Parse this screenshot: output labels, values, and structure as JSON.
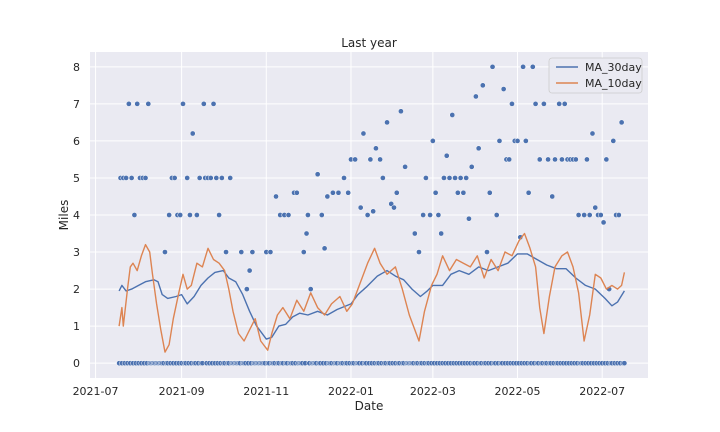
{
  "chart_data": {
    "type": "scatter+line",
    "title": "Last year",
    "xlabel": "Date",
    "ylabel": "Miles",
    "xlim": [
      "2021-06-27",
      "2022-08-03"
    ],
    "ylim": [
      -0.4,
      8.4
    ],
    "x_ticks": [
      {
        "date": "2021-07-01",
        "label": "2021-07"
      },
      {
        "date": "2021-09-01",
        "label": "2021-09"
      },
      {
        "date": "2021-11-01",
        "label": "2021-11"
      },
      {
        "date": "2022-01-01",
        "label": "2022-01"
      },
      {
        "date": "2022-03-01",
        "label": "2022-03"
      },
      {
        "date": "2022-05-01",
        "label": "2022-05"
      },
      {
        "date": "2022-07-01",
        "label": "2022-07"
      }
    ],
    "y_ticks": [
      0,
      1,
      2,
      3,
      4,
      5,
      6,
      7,
      8
    ],
    "grid": true,
    "legend_position": "top-right",
    "date_range": [
      "2021-07-18",
      "2022-07-17"
    ],
    "zero_days": "all days without a run (miles = 0)",
    "runs": [
      [
        "2021-07-19",
        5
      ],
      [
        "2021-07-21",
        5
      ],
      [
        "2021-07-23",
        5
      ],
      [
        "2021-07-25",
        7
      ],
      [
        "2021-07-27",
        5
      ],
      [
        "2021-07-29",
        4
      ],
      [
        "2021-07-31",
        7
      ],
      [
        "2021-08-02",
        5
      ],
      [
        "2021-08-04",
        5
      ],
      [
        "2021-08-06",
        5
      ],
      [
        "2021-08-08",
        7
      ],
      [
        "2021-08-20",
        3
      ],
      [
        "2021-08-23",
        4
      ],
      [
        "2021-08-25",
        5
      ],
      [
        "2021-08-27",
        5
      ],
      [
        "2021-08-29",
        4
      ],
      [
        "2021-08-31",
        4
      ],
      [
        "2021-09-02",
        7
      ],
      [
        "2021-09-05",
        5
      ],
      [
        "2021-09-07",
        4
      ],
      [
        "2021-09-09",
        6.2
      ],
      [
        "2021-09-12",
        4
      ],
      [
        "2021-09-14",
        5
      ],
      [
        "2021-09-17",
        7
      ],
      [
        "2021-09-18",
        5
      ],
      [
        "2021-09-20",
        5
      ],
      [
        "2021-09-22",
        5
      ],
      [
        "2021-09-24",
        7
      ],
      [
        "2021-09-26",
        5
      ],
      [
        "2021-09-28",
        4
      ],
      [
        "2021-09-30",
        5
      ],
      [
        "2021-10-03",
        3
      ],
      [
        "2021-10-06",
        5
      ],
      [
        "2021-10-14",
        3
      ],
      [
        "2021-10-18",
        2
      ],
      [
        "2021-10-20",
        2.5
      ],
      [
        "2021-10-22",
        3
      ],
      [
        "2021-11-01",
        3
      ],
      [
        "2021-11-04",
        3
      ],
      [
        "2021-11-08",
        4.5
      ],
      [
        "2021-11-11",
        4
      ],
      [
        "2021-11-14",
        4
      ],
      [
        "2021-11-17",
        4
      ],
      [
        "2021-11-21",
        4.6
      ],
      [
        "2021-11-23",
        4.6
      ],
      [
        "2021-11-28",
        3
      ],
      [
        "2021-11-30",
        3.5
      ],
      [
        "2021-12-01",
        4
      ],
      [
        "2021-12-03",
        2
      ],
      [
        "2021-12-08",
        5.1
      ],
      [
        "2021-12-11",
        4
      ],
      [
        "2021-12-13",
        3.1
      ],
      [
        "2021-12-15",
        4.5
      ],
      [
        "2021-12-19",
        4.6
      ],
      [
        "2021-12-23",
        4.6
      ],
      [
        "2021-12-27",
        5
      ],
      [
        "2021-12-30",
        4.6
      ],
      [
        "2022-01-01",
        5.5
      ],
      [
        "2022-01-04",
        5.5
      ],
      [
        "2022-01-08",
        4.2
      ],
      [
        "2022-01-10",
        6.2
      ],
      [
        "2022-01-13",
        4
      ],
      [
        "2022-01-15",
        5.5
      ],
      [
        "2022-01-17",
        4.1
      ],
      [
        "2022-01-19",
        5.8
      ],
      [
        "2022-01-22",
        5.5
      ],
      [
        "2022-01-24",
        5
      ],
      [
        "2022-01-27",
        6.5
      ],
      [
        "2022-01-30",
        4.3
      ],
      [
        "2022-02-01",
        4.2
      ],
      [
        "2022-02-03",
        4.6
      ],
      [
        "2022-02-06",
        6.8
      ],
      [
        "2022-02-09",
        5.3
      ],
      [
        "2022-02-16",
        3.5
      ],
      [
        "2022-02-19",
        3
      ],
      [
        "2022-02-22",
        4
      ],
      [
        "2022-02-24",
        5
      ],
      [
        "2022-02-27",
        4
      ],
      [
        "2022-03-01",
        6
      ],
      [
        "2022-03-03",
        4.6
      ],
      [
        "2022-03-05",
        4
      ],
      [
        "2022-03-07",
        3.5
      ],
      [
        "2022-03-09",
        5
      ],
      [
        "2022-03-11",
        5.6
      ],
      [
        "2022-03-13",
        5
      ],
      [
        "2022-03-15",
        6.7
      ],
      [
        "2022-03-17",
        5
      ],
      [
        "2022-03-19",
        4.6
      ],
      [
        "2022-03-21",
        5
      ],
      [
        "2022-03-23",
        4.6
      ],
      [
        "2022-03-25",
        5
      ],
      [
        "2022-03-27",
        3.9
      ],
      [
        "2022-03-29",
        5.3
      ],
      [
        "2022-04-01",
        7.2
      ],
      [
        "2022-04-03",
        5.8
      ],
      [
        "2022-04-06",
        7.5
      ],
      [
        "2022-04-09",
        3
      ],
      [
        "2022-04-11",
        4.6
      ],
      [
        "2022-04-13",
        8
      ],
      [
        "2022-04-16",
        4
      ],
      [
        "2022-04-18",
        6
      ],
      [
        "2022-04-21",
        7.4
      ],
      [
        "2022-04-23",
        5.5
      ],
      [
        "2022-04-25",
        5.5
      ],
      [
        "2022-04-27",
        7
      ],
      [
        "2022-04-29",
        6
      ],
      [
        "2022-05-01",
        6
      ],
      [
        "2022-05-03",
        3.4
      ],
      [
        "2022-05-05",
        8
      ],
      [
        "2022-05-07",
        6
      ],
      [
        "2022-05-09",
        4.6
      ],
      [
        "2022-05-12",
        8
      ],
      [
        "2022-05-14",
        7
      ],
      [
        "2022-05-17",
        5.5
      ],
      [
        "2022-05-20",
        7
      ],
      [
        "2022-05-23",
        5.5
      ],
      [
        "2022-05-26",
        4.5
      ],
      [
        "2022-05-28",
        5.5
      ],
      [
        "2022-05-31",
        7
      ],
      [
        "2022-06-02",
        5.5
      ],
      [
        "2022-06-04",
        7
      ],
      [
        "2022-06-06",
        5.5
      ],
      [
        "2022-06-08",
        5.5
      ],
      [
        "2022-06-10",
        5.5
      ],
      [
        "2022-06-12",
        5.5
      ],
      [
        "2022-06-14",
        4
      ],
      [
        "2022-06-18",
        4
      ],
      [
        "2022-06-20",
        5.5
      ],
      [
        "2022-06-22",
        4
      ],
      [
        "2022-06-24",
        6.2
      ],
      [
        "2022-06-26",
        4.2
      ],
      [
        "2022-06-28",
        4
      ],
      [
        "2022-06-30",
        4
      ],
      [
        "2022-07-02",
        3.8
      ],
      [
        "2022-07-04",
        5.5
      ],
      [
        "2022-07-06",
        2
      ],
      [
        "2022-07-09",
        6
      ],
      [
        "2022-07-11",
        4
      ],
      [
        "2022-07-13",
        4
      ],
      [
        "2022-07-15",
        6.5
      ]
    ],
    "series": [
      {
        "name": "MA_30day",
        "color": "#4c72b0",
        "points": [
          [
            "2021-07-18",
            1.95
          ],
          [
            "2021-07-20",
            2.1
          ],
          [
            "2021-07-23",
            1.95
          ],
          [
            "2021-07-27",
            2.0
          ],
          [
            "2021-08-01",
            2.1
          ],
          [
            "2021-08-06",
            2.2
          ],
          [
            "2021-08-12",
            2.25
          ],
          [
            "2021-08-15",
            2.2
          ],
          [
            "2021-08-18",
            1.85
          ],
          [
            "2021-08-22",
            1.75
          ],
          [
            "2021-08-28",
            1.8
          ],
          [
            "2021-09-01",
            1.85
          ],
          [
            "2021-09-05",
            1.6
          ],
          [
            "2021-09-10",
            1.8
          ],
          [
            "2021-09-15",
            2.1
          ],
          [
            "2021-09-20",
            2.3
          ],
          [
            "2021-09-25",
            2.45
          ],
          [
            "2021-10-01",
            2.5
          ],
          [
            "2021-10-05",
            2.3
          ],
          [
            "2021-10-10",
            2.2
          ],
          [
            "2021-10-15",
            1.85
          ],
          [
            "2021-10-20",
            1.4
          ],
          [
            "2021-10-25",
            1.0
          ],
          [
            "2021-11-01",
            0.65
          ],
          [
            "2021-11-05",
            0.7
          ],
          [
            "2021-11-10",
            1.0
          ],
          [
            "2021-11-15",
            1.05
          ],
          [
            "2021-11-20",
            1.25
          ],
          [
            "2021-11-25",
            1.35
          ],
          [
            "2021-12-01",
            1.3
          ],
          [
            "2021-12-08",
            1.4
          ],
          [
            "2021-12-15",
            1.3
          ],
          [
            "2021-12-22",
            1.45
          ],
          [
            "2022-01-01",
            1.6
          ],
          [
            "2022-01-06",
            1.85
          ],
          [
            "2022-01-12",
            2.05
          ],
          [
            "2022-01-20",
            2.35
          ],
          [
            "2022-01-27",
            2.5
          ],
          [
            "2022-02-02",
            2.35
          ],
          [
            "2022-02-08",
            2.25
          ],
          [
            "2022-02-14",
            2.0
          ],
          [
            "2022-02-20",
            1.8
          ],
          [
            "2022-02-25",
            1.95
          ],
          [
            "2022-03-01",
            2.1
          ],
          [
            "2022-03-08",
            2.1
          ],
          [
            "2022-03-14",
            2.4
          ],
          [
            "2022-03-20",
            2.5
          ],
          [
            "2022-03-27",
            2.4
          ],
          [
            "2022-04-03",
            2.6
          ],
          [
            "2022-04-10",
            2.5
          ],
          [
            "2022-04-17",
            2.6
          ],
          [
            "2022-04-24",
            2.7
          ],
          [
            "2022-05-01",
            2.95
          ],
          [
            "2022-05-08",
            2.95
          ],
          [
            "2022-05-15",
            2.8
          ],
          [
            "2022-05-22",
            2.65
          ],
          [
            "2022-05-29",
            2.55
          ],
          [
            "2022-06-05",
            2.55
          ],
          [
            "2022-06-12",
            2.3
          ],
          [
            "2022-06-19",
            2.1
          ],
          [
            "2022-06-26",
            2.0
          ],
          [
            "2022-07-03",
            1.75
          ],
          [
            "2022-07-08",
            1.55
          ],
          [
            "2022-07-12",
            1.65
          ],
          [
            "2022-07-17",
            1.95
          ]
        ]
      },
      {
        "name": "MA_10day",
        "color": "#dd8452",
        "points": [
          [
            "2021-07-18",
            1.0
          ],
          [
            "2021-07-20",
            1.5
          ],
          [
            "2021-07-21",
            1.0
          ],
          [
            "2021-07-24",
            2.0
          ],
          [
            "2021-07-26",
            2.6
          ],
          [
            "2021-07-28",
            2.7
          ],
          [
            "2021-07-31",
            2.5
          ],
          [
            "2021-08-03",
            2.9
          ],
          [
            "2021-08-06",
            3.2
          ],
          [
            "2021-08-09",
            3.0
          ],
          [
            "2021-08-11",
            2.4
          ],
          [
            "2021-08-14",
            1.6
          ],
          [
            "2021-08-17",
            0.9
          ],
          [
            "2021-08-20",
            0.3
          ],
          [
            "2021-08-23",
            0.5
          ],
          [
            "2021-08-26",
            1.2
          ],
          [
            "2021-08-30",
            1.9
          ],
          [
            "2021-09-02",
            2.4
          ],
          [
            "2021-09-05",
            2.0
          ],
          [
            "2021-09-08",
            2.1
          ],
          [
            "2021-09-12",
            2.7
          ],
          [
            "2021-09-16",
            2.6
          ],
          [
            "2021-09-20",
            3.1
          ],
          [
            "2021-09-24",
            2.8
          ],
          [
            "2021-09-28",
            2.7
          ],
          [
            "2021-10-02",
            2.5
          ],
          [
            "2021-10-05",
            2.0
          ],
          [
            "2021-10-08",
            1.4
          ],
          [
            "2021-10-12",
            0.8
          ],
          [
            "2021-10-16",
            0.6
          ],
          [
            "2021-10-20",
            0.9
          ],
          [
            "2021-10-24",
            1.2
          ],
          [
            "2021-10-28",
            0.6
          ],
          [
            "2021-11-02",
            0.35
          ],
          [
            "2021-11-05",
            0.8
          ],
          [
            "2021-11-09",
            1.3
          ],
          [
            "2021-11-13",
            1.5
          ],
          [
            "2021-11-18",
            1.2
          ],
          [
            "2021-11-23",
            1.7
          ],
          [
            "2021-11-28",
            1.4
          ],
          [
            "2021-12-03",
            1.9
          ],
          [
            "2021-12-08",
            1.5
          ],
          [
            "2021-12-13",
            1.3
          ],
          [
            "2021-12-18",
            1.6
          ],
          [
            "2021-12-24",
            1.8
          ],
          [
            "2021-12-29",
            1.4
          ],
          [
            "2022-01-02",
            1.6
          ],
          [
            "2022-01-07",
            2.1
          ],
          [
            "2022-01-13",
            2.7
          ],
          [
            "2022-01-18",
            3.1
          ],
          [
            "2022-01-22",
            2.7
          ],
          [
            "2022-01-27",
            2.4
          ],
          [
            "2022-02-02",
            2.6
          ],
          [
            "2022-02-07",
            2.0
          ],
          [
            "2022-02-12",
            1.3
          ],
          [
            "2022-02-16",
            0.9
          ],
          [
            "2022-02-19",
            0.6
          ],
          [
            "2022-02-23",
            1.4
          ],
          [
            "2022-02-28",
            2.1
          ],
          [
            "2022-03-04",
            2.4
          ],
          [
            "2022-03-08",
            2.9
          ],
          [
            "2022-03-13",
            2.5
          ],
          [
            "2022-03-18",
            2.8
          ],
          [
            "2022-03-23",
            2.7
          ],
          [
            "2022-03-28",
            2.6
          ],
          [
            "2022-04-02",
            2.9
          ],
          [
            "2022-04-07",
            2.3
          ],
          [
            "2022-04-12",
            2.8
          ],
          [
            "2022-04-17",
            2.5
          ],
          [
            "2022-04-22",
            3.0
          ],
          [
            "2022-04-27",
            2.9
          ],
          [
            "2022-05-02",
            3.3
          ],
          [
            "2022-05-06",
            3.5
          ],
          [
            "2022-05-10",
            3.1
          ],
          [
            "2022-05-14",
            2.6
          ],
          [
            "2022-05-17",
            1.5
          ],
          [
            "2022-05-20",
            0.8
          ],
          [
            "2022-05-24",
            1.8
          ],
          [
            "2022-05-28",
            2.6
          ],
          [
            "2022-06-02",
            2.9
          ],
          [
            "2022-06-06",
            3.0
          ],
          [
            "2022-06-10",
            2.6
          ],
          [
            "2022-06-14",
            1.9
          ],
          [
            "2022-06-18",
            0.6
          ],
          [
            "2022-06-22",
            1.3
          ],
          [
            "2022-06-26",
            2.4
          ],
          [
            "2022-06-30",
            2.3
          ],
          [
            "2022-07-04",
            2.0
          ],
          [
            "2022-07-08",
            2.1
          ],
          [
            "2022-07-12",
            2.0
          ],
          [
            "2022-07-15",
            2.1
          ],
          [
            "2022-07-17",
            2.45
          ]
        ]
      }
    ],
    "scatter_color": "#4c72b0",
    "legend": [
      {
        "label": "MA_30day",
        "color": "#4c72b0"
      },
      {
        "label": "MA_10day",
        "color": "#dd8452"
      }
    ]
  }
}
